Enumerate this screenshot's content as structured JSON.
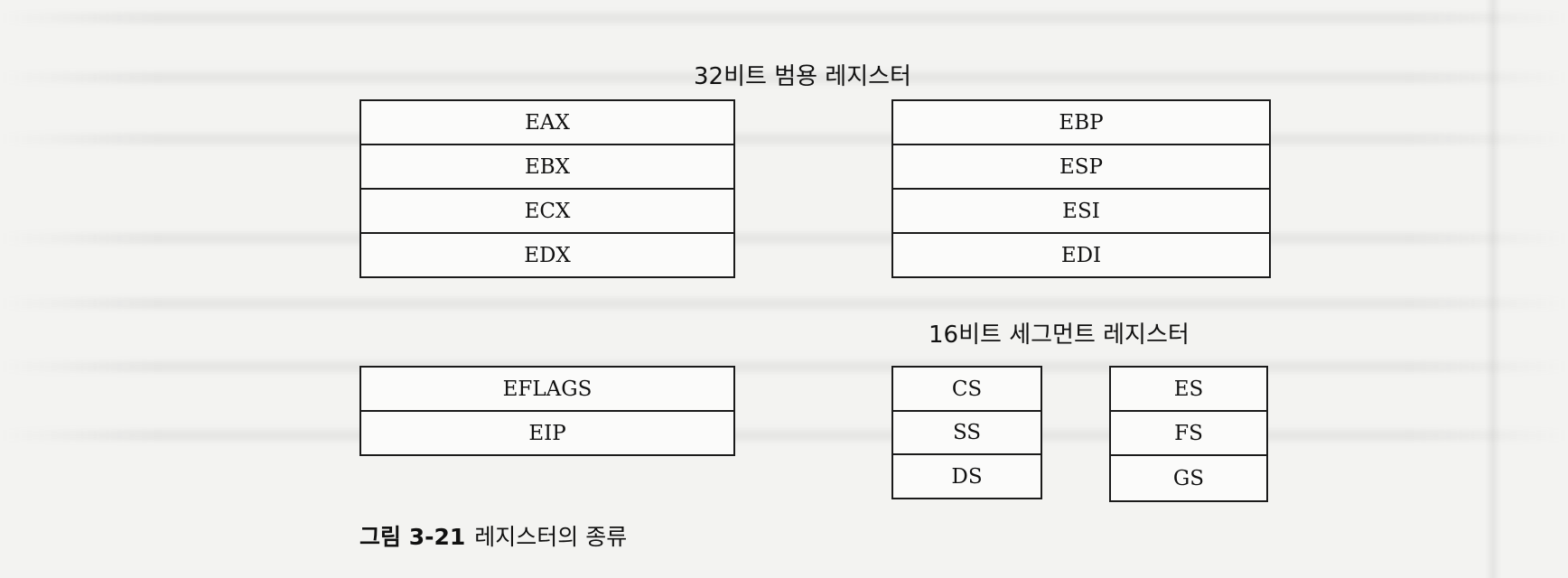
{
  "general_purpose": {
    "title": "32비트 범용 레지스터",
    "left_registers": [
      "EAX",
      "EBX",
      "ECX",
      "EDX"
    ],
    "right_registers": [
      "EBP",
      "ESP",
      "ESI",
      "EDI"
    ]
  },
  "control": {
    "registers": [
      "EFLAGS",
      "EIP"
    ]
  },
  "segment": {
    "title": "16비트 세그먼트 레지스터",
    "left_registers": [
      "CS",
      "SS",
      "DS"
    ],
    "right_registers": [
      "ES",
      "FS",
      "GS"
    ]
  },
  "caption": {
    "number": "그림 3-21",
    "text": "레지스터의 종류"
  }
}
